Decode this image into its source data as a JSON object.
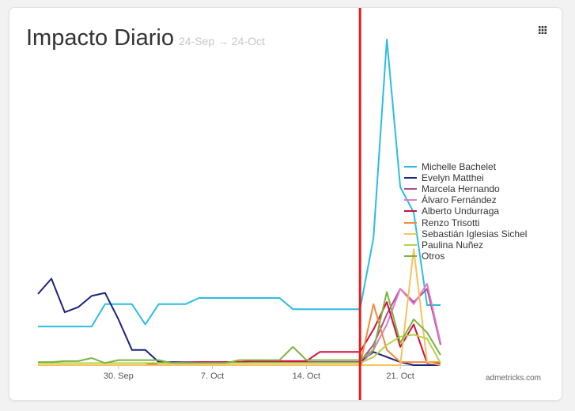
{
  "header": {
    "title": "Impacto Diario",
    "date_range": "24-Sep → 24-Oct",
    "menu_icon": "grid-icon"
  },
  "credit": "admetricks.com",
  "chart_data": {
    "type": "line",
    "title": "Impacto Diario",
    "subtitle": "24-Sep → 24-Oct",
    "xlabel": "",
    "ylabel": "",
    "x": [
      "2015-09-24",
      "2015-09-25",
      "2015-09-26",
      "2015-09-27",
      "2015-09-28",
      "2015-09-29",
      "2015-09-30",
      "2015-10-01",
      "2015-10-02",
      "2015-10-03",
      "2015-10-04",
      "2015-10-05",
      "2015-10-06",
      "2015-10-07",
      "2015-10-08",
      "2015-10-09",
      "2015-10-10",
      "2015-10-11",
      "2015-10-12",
      "2015-10-13",
      "2015-10-14",
      "2015-10-15",
      "2015-10-16",
      "2015-10-17",
      "2015-10-18",
      "2015-10-19",
      "2015-10-20",
      "2015-10-21",
      "2015-10-22",
      "2015-10-23",
      "2015-10-24"
    ],
    "x_ticks": [
      {
        "date": "2015-09-30",
        "label": "30. Sep"
      },
      {
        "date": "2015-10-07",
        "label": "7. Oct"
      },
      {
        "date": "2015-10-14",
        "label": "14. Oct"
      },
      {
        "date": "2015-10-21",
        "label": "21. Oct"
      }
    ],
    "ylim": [
      0,
      320
    ],
    "grid": false,
    "legend_position": "right",
    "marker_date": "2015-10-18",
    "marker_color": "#e02020",
    "series": [
      {
        "name": "Michelle Bachelet",
        "color": "#2bbde3",
        "values": [
          38,
          38,
          38,
          38,
          38,
          60,
          60,
          60,
          40,
          60,
          60,
          60,
          66,
          66,
          66,
          66,
          66,
          66,
          66,
          55,
          55,
          55,
          55,
          55,
          55,
          125,
          320,
          175,
          150,
          59,
          59
        ]
      },
      {
        "name": "Evelyn Matthei",
        "color": "#1a237e",
        "values": [
          70,
          85,
          52,
          57,
          68,
          71,
          45,
          15,
          15,
          3,
          3,
          3,
          3,
          3,
          3,
          3,
          3,
          3,
          3,
          3,
          3,
          3,
          3,
          3,
          3,
          13,
          8,
          3,
          0,
          0,
          0
        ]
      },
      {
        "name": "Marcela Hernando",
        "color": "#a94f8a",
        "values": [
          0,
          0,
          0,
          0,
          0,
          0,
          0,
          0,
          0,
          2,
          2,
          3,
          3,
          3,
          3,
          3,
          3,
          3,
          3,
          3,
          3,
          3,
          3,
          3,
          3,
          20,
          50,
          75,
          62,
          75,
          20
        ]
      },
      {
        "name": "Álvaro Fernández",
        "color": "#e27bc8",
        "values": [
          0,
          0,
          0,
          0,
          0,
          0,
          0,
          0,
          0,
          0,
          0,
          0,
          0,
          0,
          0,
          0,
          0,
          0,
          0,
          0,
          0,
          0,
          0,
          0,
          0,
          15,
          40,
          75,
          60,
          80,
          22
        ]
      },
      {
        "name": "Alberto Undurraga",
        "color": "#d0103a",
        "values": [
          0,
          0,
          0,
          0,
          0,
          0,
          0,
          0,
          0,
          2,
          2,
          2,
          3,
          3,
          3,
          3,
          4,
          4,
          4,
          4,
          4,
          13,
          13,
          13,
          13,
          35,
          62,
          18,
          40,
          2,
          2
        ]
      },
      {
        "name": "Renzo Trisotti",
        "color": "#f08c3a",
        "values": [
          0,
          0,
          0,
          0,
          0,
          0,
          0,
          0,
          0,
          0,
          0,
          0,
          0,
          0,
          0,
          0,
          0,
          0,
          0,
          0,
          0,
          0,
          0,
          0,
          0,
          60,
          15,
          3,
          3,
          3,
          3
        ]
      },
      {
        "name": "Sebastián Iglesias Sichel",
        "color": "#f8c159",
        "values": [
          0,
          0,
          0,
          0,
          0,
          0,
          0,
          0,
          0,
          0,
          0,
          0,
          0,
          0,
          0,
          0,
          0,
          0,
          0,
          0,
          0,
          0,
          0,
          0,
          0,
          0,
          0,
          0,
          114,
          3,
          0
        ]
      },
      {
        "name": "Paulina Nuñez",
        "color": "#b3d44a",
        "values": [
          2,
          2,
          2,
          2,
          2,
          2,
          2,
          2,
          2,
          2,
          2,
          2,
          2,
          2,
          2,
          2,
          2,
          2,
          2,
          2,
          2,
          2,
          2,
          2,
          2,
          8,
          20,
          28,
          30,
          26,
          2
        ]
      },
      {
        "name": "Otros",
        "color": "#7cb342",
        "values": [
          3,
          3,
          4,
          4,
          7,
          2,
          5,
          5,
          5,
          5,
          2,
          2,
          2,
          2,
          2,
          5,
          5,
          5,
          5,
          18,
          5,
          5,
          5,
          5,
          5,
          15,
          72,
          22,
          45,
          32,
          10
        ]
      }
    ]
  }
}
